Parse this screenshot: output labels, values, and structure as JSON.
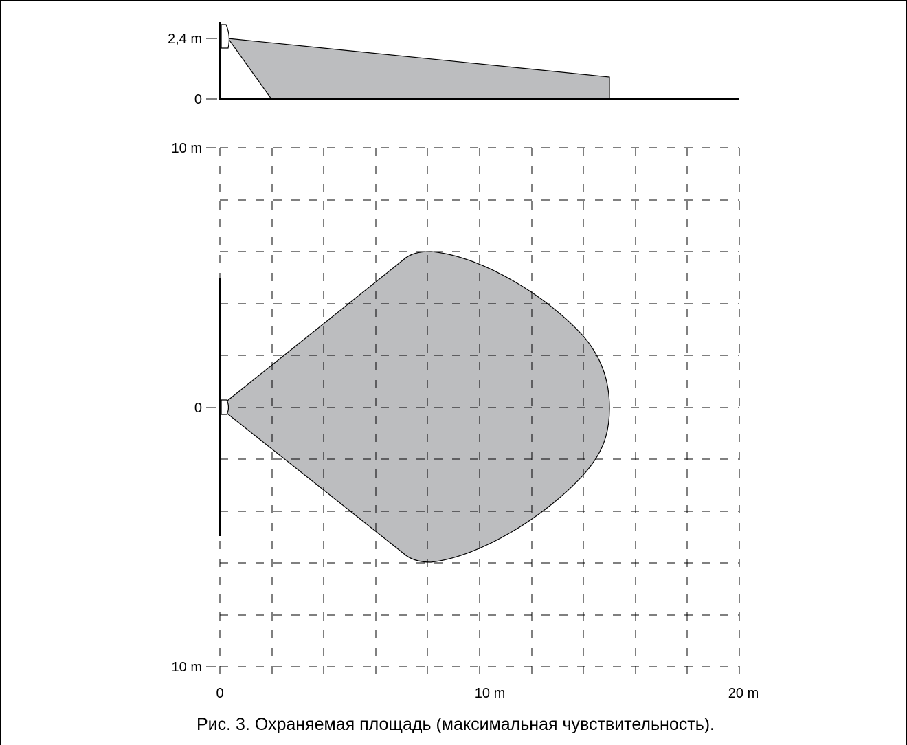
{
  "side_view": {
    "y_label_top": "2,4 m",
    "y_label_bottom": "0"
  },
  "top_view": {
    "y_label_top": "10 m",
    "y_label_middle": "0",
    "y_label_bottom": "10 m",
    "x_label_left": "0",
    "x_label_middle": "10 m",
    "x_label_right": "20 m"
  },
  "caption": "Рис. 3. Охраняемая площадь (максимальная чувствительность).",
  "colors": {
    "coverage_fill": "#bcbdbf",
    "line": "#000000",
    "background": "#ffffff"
  }
}
